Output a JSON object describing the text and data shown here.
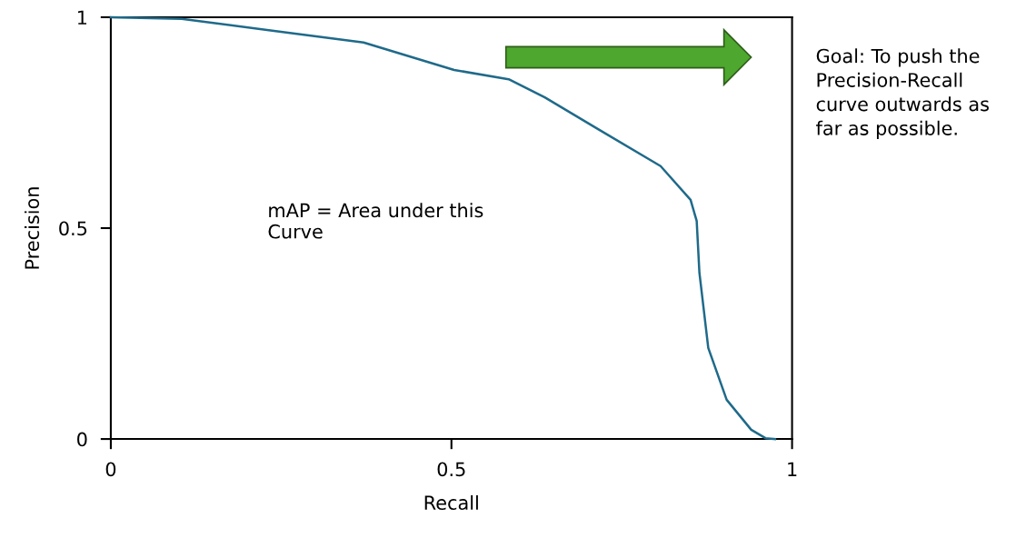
{
  "chart_data": {
    "type": "line",
    "xlabel": "Recall",
    "ylabel": "Precision",
    "x": [
      0,
      0.104,
      0.237,
      0.371,
      0.504,
      0.584,
      0.637,
      0.717,
      0.807,
      0.851,
      0.86,
      0.864,
      0.877,
      0.904,
      0.94,
      0.961,
      0.975
    ],
    "series": [
      {
        "color": "#1f6a8a",
        "values": [
          1.0,
          0.996,
          0.968,
          0.94,
          0.875,
          0.853,
          0.81,
          0.733,
          0.647,
          0.567,
          0.517,
          0.394,
          0.216,
          0.093,
          0.022,
          0.002,
          0
        ]
      }
    ],
    "xlim": [
      0,
      1
    ],
    "ylim": [
      0,
      1
    ],
    "xticks": [
      0,
      0.5,
      1
    ],
    "yticks": [
      0,
      0.5,
      1
    ],
    "grid": false,
    "legend": false,
    "marker": "none",
    "line_style": "solid",
    "annotations": [
      "mAP = Area under this\nCurve",
      "Goal: To push the\nPrecision-Recall\ncurve outwards as\nfar as possible."
    ]
  }
}
